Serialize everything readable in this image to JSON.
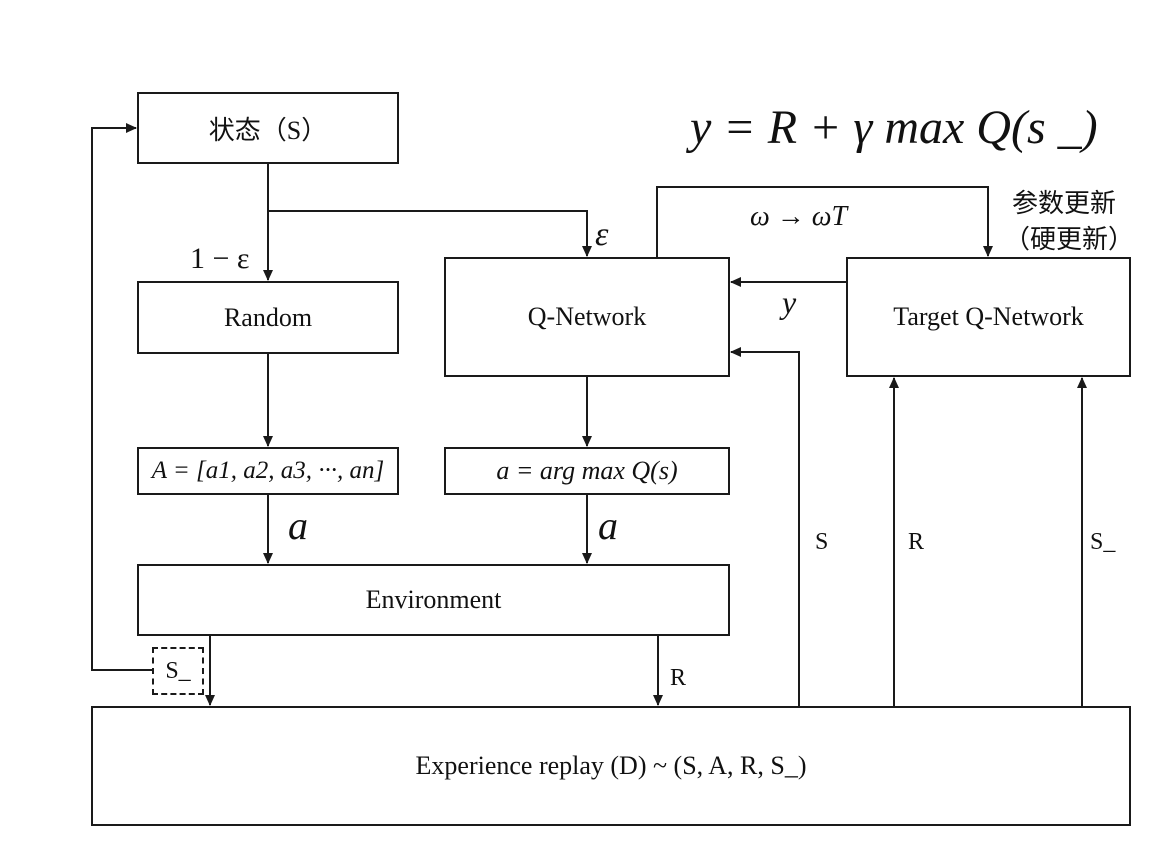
{
  "formula": {
    "text": "y = R + γ max Q(s _)"
  },
  "nodes": {
    "state": "状态（S）",
    "random": "Random",
    "qnet": "Q-Network",
    "target": "Target Q-Network",
    "action_set": "A = [a1, a2, a3, ···, an]",
    "argmax": "a = arg max Q(s)",
    "environment": "Environment",
    "s_next": "S_",
    "replay": "Experience replay (D) ~ (S, A, R, S_)"
  },
  "edges": {
    "one_minus_eps": "1 − ε",
    "eps": "ε",
    "omega": "ω → ωT",
    "param_update_1": "参数更新",
    "param_update_2": "（硬更新）",
    "y": "y",
    "a_left": "a",
    "a_right": "a",
    "s": "S",
    "r_up": "R",
    "s_next_up": "S_",
    "r_down": "R"
  }
}
